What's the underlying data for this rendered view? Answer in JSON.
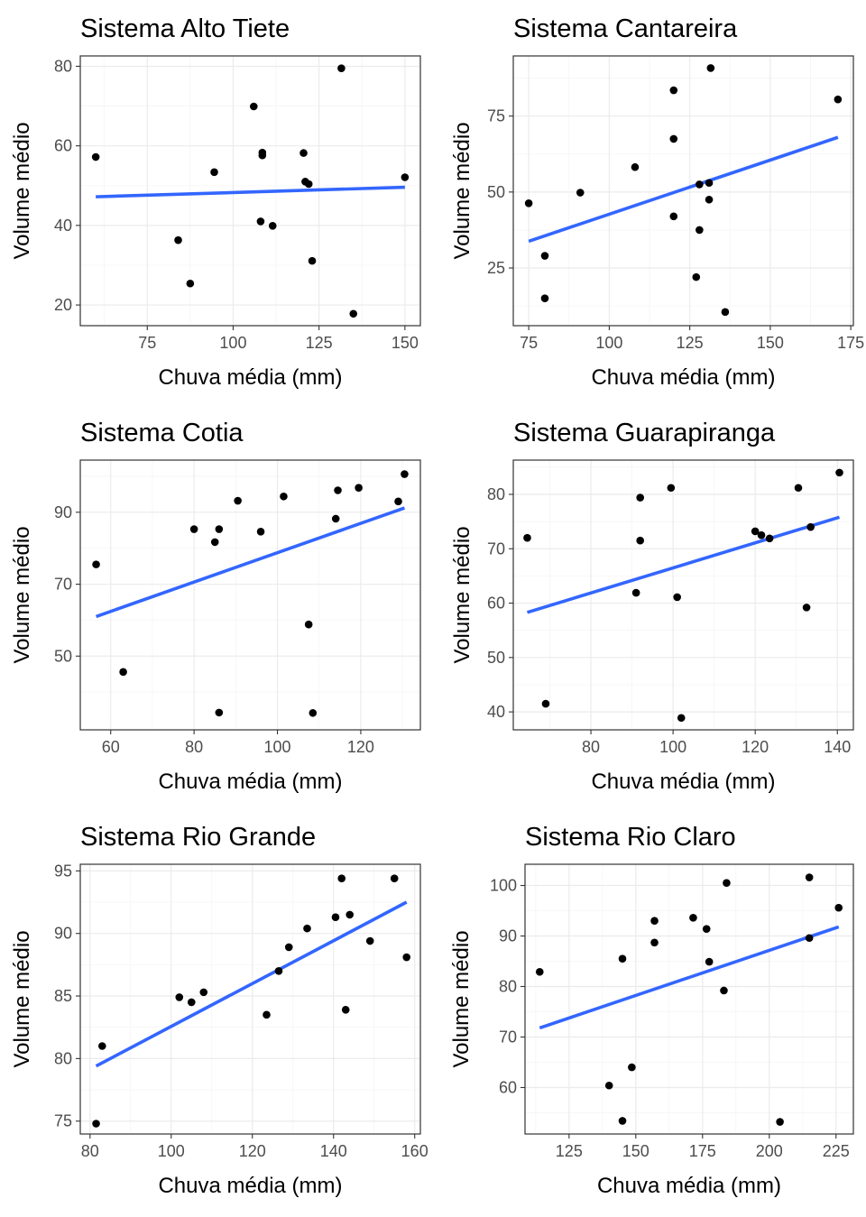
{
  "chart_data": [
    {
      "type": "scatter",
      "title": "Sistema Alto Tiete",
      "xlabel": "Chuva média (mm)",
      "ylabel": "Volume médio",
      "xlim": [
        55.5,
        154.5
      ],
      "ylim": [
        14.8,
        82.6
      ],
      "xticks": [
        75,
        100,
        125,
        150
      ],
      "yticks": [
        20,
        40,
        60,
        80
      ],
      "grid": true,
      "points": [
        {
          "x": 60,
          "y": 57.2
        },
        {
          "x": 84,
          "y": 36.3
        },
        {
          "x": 87.5,
          "y": 25.4
        },
        {
          "x": 94.5,
          "y": 53.4
        },
        {
          "x": 106,
          "y": 69.9
        },
        {
          "x": 108,
          "y": 41.0
        },
        {
          "x": 108.5,
          "y": 58.3
        },
        {
          "x": 108.5,
          "y": 57.6
        },
        {
          "x": 111.5,
          "y": 39.9
        },
        {
          "x": 120.5,
          "y": 58.2
        },
        {
          "x": 121,
          "y": 51.0
        },
        {
          "x": 122,
          "y": 50.4
        },
        {
          "x": 123,
          "y": 31.1
        },
        {
          "x": 131.5,
          "y": 79.5
        },
        {
          "x": 135,
          "y": 17.8
        },
        {
          "x": 150,
          "y": 52.1
        }
      ],
      "trend": {
        "x": [
          60,
          150
        ],
        "y": [
          47.2,
          49.6
        ]
      }
    },
    {
      "type": "scatter",
      "title": "Sistema Cantareira",
      "xlabel": "Chuva média (mm)",
      "ylabel": "Volume médio",
      "xlim": [
        70.2,
        175.8
      ],
      "ylim": [
        6.0,
        94.8
      ],
      "xticks": [
        75,
        100,
        125,
        150,
        175
      ],
      "yticks": [
        25,
        50,
        75
      ],
      "grid": true,
      "points": [
        {
          "x": 75,
          "y": 46.3
        },
        {
          "x": 80,
          "y": 29.0
        },
        {
          "x": 80,
          "y": 15.0
        },
        {
          "x": 91,
          "y": 49.8
        },
        {
          "x": 108,
          "y": 58.2
        },
        {
          "x": 120,
          "y": 83.5
        },
        {
          "x": 120,
          "y": 67.5
        },
        {
          "x": 120,
          "y": 42.0
        },
        {
          "x": 127,
          "y": 22.0
        },
        {
          "x": 128,
          "y": 52.5
        },
        {
          "x": 128,
          "y": 37.5
        },
        {
          "x": 131,
          "y": 53.0
        },
        {
          "x": 131,
          "y": 47.5
        },
        {
          "x": 131.5,
          "y": 90.8
        },
        {
          "x": 136,
          "y": 10.5
        },
        {
          "x": 171,
          "y": 80.5
        }
      ],
      "trend": {
        "x": [
          75,
          171
        ],
        "y": [
          33.8,
          68.0
        ]
      }
    },
    {
      "type": "scatter",
      "title": "Sistema Cotia",
      "xlabel": "Chuva média (mm)",
      "ylabel": "Volume médio",
      "xlim": [
        52.7,
        134.3
      ],
      "ylim": [
        29.5,
        104.5
      ],
      "xticks": [
        60,
        80,
        100,
        120
      ],
      "yticks": [
        50,
        70,
        90
      ],
      "grid": true,
      "points": [
        {
          "x": 56.5,
          "y": 75.5
        },
        {
          "x": 63,
          "y": 45.6
        },
        {
          "x": 80,
          "y": 85.3
        },
        {
          "x": 85,
          "y": 81.7
        },
        {
          "x": 86,
          "y": 85.3
        },
        {
          "x": 86,
          "y": 34.3
        },
        {
          "x": 90.5,
          "y": 93.2
        },
        {
          "x": 96,
          "y": 84.6
        },
        {
          "x": 101.5,
          "y": 94.4
        },
        {
          "x": 107.5,
          "y": 58.8
        },
        {
          "x": 108.5,
          "y": 34.2
        },
        {
          "x": 114,
          "y": 88.2
        },
        {
          "x": 114.5,
          "y": 96.1
        },
        {
          "x": 119.5,
          "y": 96.8
        },
        {
          "x": 129,
          "y": 93.0
        },
        {
          "x": 130.5,
          "y": 100.6
        }
      ],
      "trend": {
        "x": [
          56.5,
          130.5
        ],
        "y": [
          61.0,
          91.2
        ]
      }
    },
    {
      "type": "scatter",
      "title": "Sistema Guarapiranga",
      "xlabel": "Chuva média (mm)",
      "ylabel": "Volume médio",
      "xlim": [
        61.1,
        143.9
      ],
      "ylim": [
        36.7,
        86.3
      ],
      "xticks": [
        80,
        100,
        120,
        140
      ],
      "yticks": [
        40,
        50,
        60,
        70,
        80
      ],
      "grid": true,
      "points": [
        {
          "x": 64.5,
          "y": 72.0
        },
        {
          "x": 69,
          "y": 41.5
        },
        {
          "x": 91,
          "y": 61.9
        },
        {
          "x": 92,
          "y": 79.4
        },
        {
          "x": 92,
          "y": 71.5
        },
        {
          "x": 99.5,
          "y": 81.2
        },
        {
          "x": 101,
          "y": 61.1
        },
        {
          "x": 102,
          "y": 38.9
        },
        {
          "x": 120,
          "y": 73.2
        },
        {
          "x": 121.5,
          "y": 72.5
        },
        {
          "x": 123.5,
          "y": 71.9
        },
        {
          "x": 130.5,
          "y": 81.2
        },
        {
          "x": 132.5,
          "y": 59.2
        },
        {
          "x": 133.5,
          "y": 74.0
        },
        {
          "x": 140.5,
          "y": 84.0
        }
      ],
      "trend": {
        "x": [
          64.5,
          140.5
        ],
        "y": [
          58.3,
          75.8
        ]
      }
    },
    {
      "type": "scatter",
      "title": "Sistema Rio Grande",
      "xlabel": "Chuva média (mm)",
      "ylabel": "Volume médio",
      "xlim": [
        77.6,
        161.4
      ],
      "ylim": [
        73.97,
        95.53
      ],
      "xticks": [
        80,
        100,
        120,
        140,
        160
      ],
      "yticks": [
        75,
        80,
        85,
        90,
        95
      ],
      "grid": true,
      "points": [
        {
          "x": 81.5,
          "y": 74.8
        },
        {
          "x": 83,
          "y": 81.0
        },
        {
          "x": 102,
          "y": 84.9
        },
        {
          "x": 105,
          "y": 84.5
        },
        {
          "x": 108,
          "y": 85.3
        },
        {
          "x": 123.5,
          "y": 83.5
        },
        {
          "x": 126.5,
          "y": 87.0
        },
        {
          "x": 129,
          "y": 88.9
        },
        {
          "x": 133.5,
          "y": 90.4
        },
        {
          "x": 140.5,
          "y": 91.3
        },
        {
          "x": 142,
          "y": 94.4
        },
        {
          "x": 143,
          "y": 83.9
        },
        {
          "x": 144,
          "y": 91.5
        },
        {
          "x": 149,
          "y": 89.4
        },
        {
          "x": 155,
          "y": 94.4
        },
        {
          "x": 158,
          "y": 88.1
        }
      ],
      "trend": {
        "x": [
          81.5,
          158
        ],
        "y": [
          79.4,
          92.5
        ]
      }
    },
    {
      "type": "scatter",
      "title": "Sistema Rio Claro",
      "xlabel": "Chuva média (mm)",
      "ylabel": "Volume médio",
      "xlim": [
        108.5,
        231.5
      ],
      "ylim": [
        50.8,
        104.2
      ],
      "xticks": [
        125,
        150,
        175,
        200,
        225
      ],
      "yticks": [
        60,
        70,
        80,
        90,
        100
      ],
      "grid": true,
      "points": [
        {
          "x": 114,
          "y": 82.9
        },
        {
          "x": 140,
          "y": 60.4
        },
        {
          "x": 145,
          "y": 85.5
        },
        {
          "x": 145,
          "y": 53.4
        },
        {
          "x": 148.5,
          "y": 64.0
        },
        {
          "x": 157,
          "y": 93.0
        },
        {
          "x": 157,
          "y": 88.7
        },
        {
          "x": 171.5,
          "y": 93.6
        },
        {
          "x": 176.5,
          "y": 91.4
        },
        {
          "x": 177.5,
          "y": 84.9
        },
        {
          "x": 183,
          "y": 79.2
        },
        {
          "x": 184,
          "y": 100.5
        },
        {
          "x": 204,
          "y": 53.2
        },
        {
          "x": 215,
          "y": 101.6
        },
        {
          "x": 215,
          "y": 89.6
        },
        {
          "x": 226,
          "y": 95.6
        }
      ],
      "trend": {
        "x": [
          114,
          226
        ],
        "y": [
          71.8,
          91.8
        ]
      }
    }
  ],
  "colors": {
    "points": "#000000",
    "trend": "#3366ff",
    "grid_major": "#ebebeb",
    "grid_minor": "#f5f5f5",
    "panel_border": "#333333",
    "tick_text": "#4d4d4d"
  }
}
